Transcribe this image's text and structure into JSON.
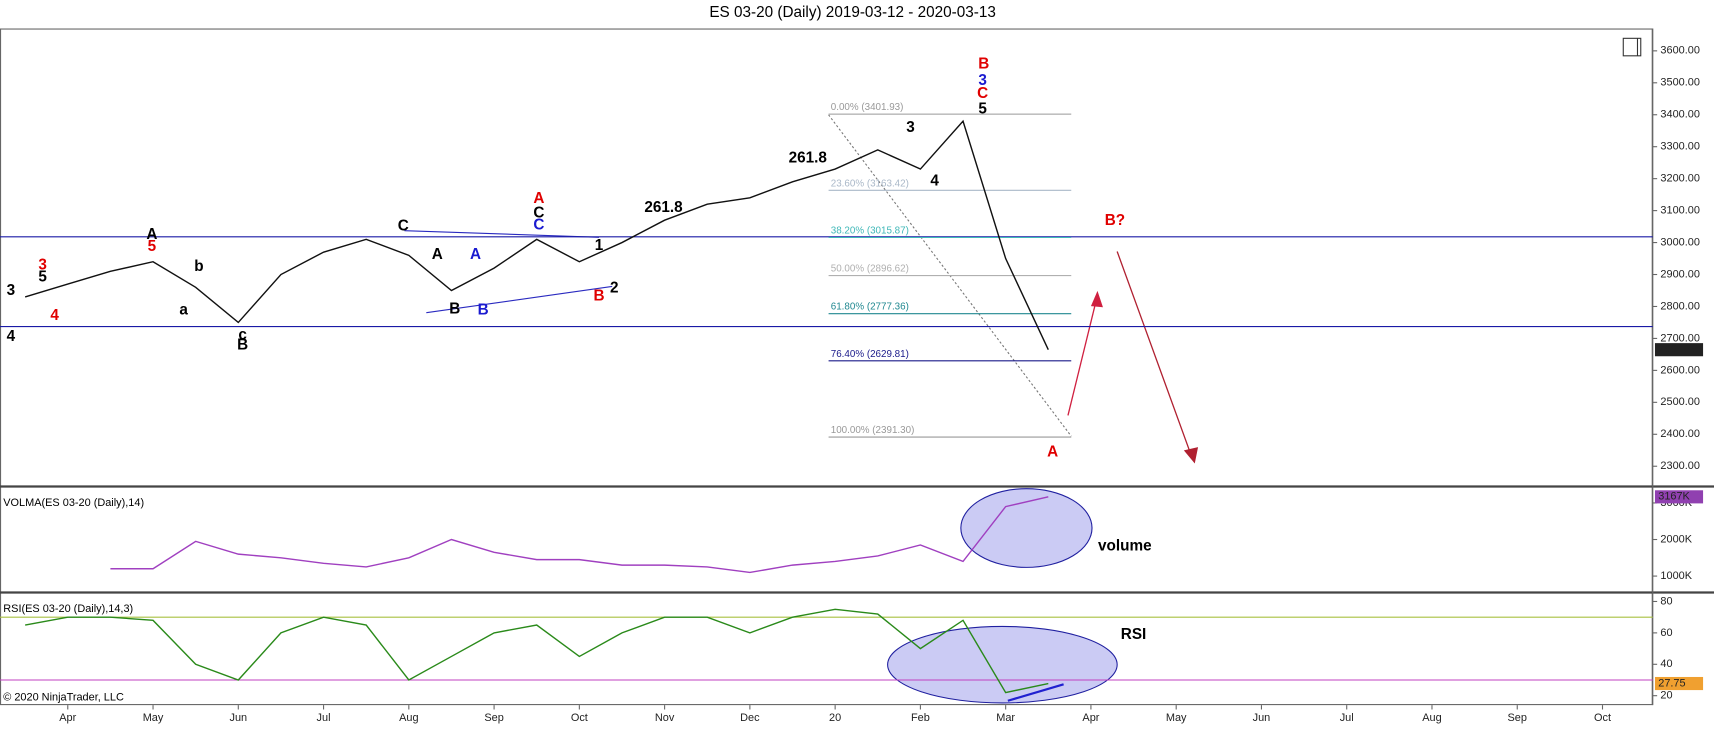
{
  "title": "ES 03-20 (Daily)  2019-03-12 - 2020-03-13",
  "footer": "© 2020 NinjaTrader, LLC",
  "chart_data": [
    {
      "type": "line",
      "categories": [
        null,
        "Apr",
        null,
        "May",
        null,
        "Jun",
        null,
        "Jul",
        null,
        "Aug",
        null,
        "Sep",
        null,
        "Oct",
        null,
        "Nov",
        null,
        "Dec",
        null,
        "20",
        null,
        "Feb",
        null,
        "Mar",
        null,
        "Apr",
        null,
        "May",
        null,
        "Jun",
        null,
        "Jul",
        null,
        "Aug",
        null,
        "Sep",
        null,
        "Oct"
      ],
      "values": [
        2830,
        2870,
        2910,
        2940,
        2860,
        2750,
        2900,
        2970,
        3010,
        2960,
        2850,
        2920,
        3010,
        2940,
        3000,
        3070,
        3120,
        3140,
        3190,
        3230,
        3290,
        3230,
        3380,
        2950,
        2664.75,
        null,
        null,
        null,
        null,
        null,
        null,
        null,
        null,
        null,
        null,
        null,
        null,
        null
      ],
      "color": "#111111",
      "ylim": [
        2240,
        3670
      ],
      "yticks": [
        {
          "value": 2300,
          "label": "2300.00"
        },
        {
          "value": 2400,
          "label": "2400.00"
        },
        {
          "value": 2500,
          "label": "2500.00"
        },
        {
          "value": 2600,
          "label": "2600.00"
        },
        {
          "value": 2700,
          "label": "2700.00"
        },
        {
          "value": 2800,
          "label": "2800.00"
        },
        {
          "value": 2900,
          "label": "2900.00"
        },
        {
          "value": 3000,
          "label": "3000.00"
        },
        {
          "value": 3100,
          "label": "3100.00"
        },
        {
          "value": 3200,
          "label": "3200.00"
        },
        {
          "value": 3300,
          "label": "3300.00"
        },
        {
          "value": 3400,
          "label": "3400.00"
        },
        {
          "value": 3500,
          "label": "3500.00"
        },
        {
          "value": 3600,
          "label": "3600.00"
        }
      ],
      "levels": [
        {
          "value": 3018,
          "color": "#1a1aa6"
        },
        {
          "value": 2737,
          "color": "#1a1aa6"
        }
      ],
      "fib_levels": [
        {
          "value": 3401.93,
          "label": "0.00% (3401.93)",
          "color": "#999999"
        },
        {
          "value": 3163.42,
          "label": "23.60% (3163.42)",
          "color": "#aab8c8"
        },
        {
          "value": 3015.87,
          "label": "38.20% (3015.87)",
          "color": "#40b8b8"
        },
        {
          "value": 2896.62,
          "label": "50.00% (2896.62)",
          "color": "#b0b0b0"
        },
        {
          "value": 2777.36,
          "label": "61.80% (2777.36)",
          "color": "#208890"
        },
        {
          "value": 2629.81,
          "label": "76.40% (2629.81)",
          "color": "#1a1a8a"
        },
        {
          "value": 2391.3,
          "label": "100.00% (2391.30)",
          "color": "#999999"
        }
      ],
      "annotations": [
        {
          "text": "3",
          "color": "#000000"
        },
        {
          "text": "5",
          "color": "#000000"
        },
        {
          "text": "3",
          "color": "#e00000"
        },
        {
          "text": "4",
          "color": "#e00000"
        },
        {
          "text": "4",
          "color": "#000000"
        },
        {
          "text": "A",
          "color": "#000000"
        },
        {
          "text": "5",
          "color": "#e00000"
        },
        {
          "text": "a",
          "color": "#000000"
        },
        {
          "text": "b",
          "color": "#000000"
        },
        {
          "text": "c",
          "color": "#000000"
        },
        {
          "text": "B",
          "color": "#000000"
        },
        {
          "text": "C",
          "color": "#000000"
        },
        {
          "text": "A",
          "color": "#000000"
        },
        {
          "text": "B",
          "color": "#000000"
        },
        {
          "text": "A",
          "color": "#1a1ad0"
        },
        {
          "text": "B",
          "color": "#1a1ad0"
        },
        {
          "text": "A",
          "color": "#e00000"
        },
        {
          "text": "C",
          "color": "#000000"
        },
        {
          "text": "C",
          "color": "#1a1ad0"
        },
        {
          "text": "1",
          "color": "#000000"
        },
        {
          "text": "2",
          "color": "#000000"
        },
        {
          "text": "B",
          "color": "#e00000"
        },
        {
          "text": "261.8",
          "color": "#000000"
        },
        {
          "text": "261.8",
          "color": "#000000"
        },
        {
          "text": "3",
          "color": "#000000"
        },
        {
          "text": "4",
          "color": "#000000"
        },
        {
          "text": "B",
          "color": "#e00000"
        },
        {
          "text": "3",
          "color": "#1a1ad0"
        },
        {
          "text": "C",
          "color": "#e00000"
        },
        {
          "text": "5",
          "color": "#000000"
        },
        {
          "text": "A",
          "color": "#e00000"
        },
        {
          "text": "B?",
          "color": "#e00000"
        }
      ]
    },
    {
      "type": "line",
      "series": [
        {
          "name": "VOLMA(ES 03-20 (Daily),14)",
          "color": "#a040c0",
          "values": [
            null,
            null,
            1200,
            1200,
            1950,
            1600,
            1500,
            1350,
            1250,
            1500,
            2000,
            1650,
            1450,
            1450,
            1300,
            1300,
            1250,
            1100,
            1300,
            1400,
            1550,
            1850,
            1400,
            2900,
            3167,
            null,
            null,
            null,
            null,
            null,
            null,
            null,
            null,
            null,
            null,
            null,
            null,
            null
          ],
          "value_labels": [
            null,
            null,
            null,
            null,
            null,
            null,
            null,
            null,
            null,
            null,
            null,
            null,
            null,
            null,
            null,
            null,
            null,
            null,
            null,
            null,
            null,
            null,
            null,
            null,
            "3167K",
            null,
            null,
            null,
            null,
            null,
            null,
            null,
            null,
            null,
            null,
            null,
            null,
            null
          ]
        }
      ],
      "ylim": [
        580,
        3420
      ],
      "yticks": [
        {
          "value": 1000,
          "label": "1000K"
        },
        {
          "value": 2000,
          "label": "2000K"
        },
        {
          "value": 3000,
          "label": "3000K"
        }
      ],
      "annotations": [
        {
          "text": "volume",
          "color": "#000000"
        }
      ]
    },
    {
      "type": "line",
      "series": [
        {
          "name": "RSI(ES 03-20 (Daily),14,3)",
          "color": "#2a8a1a",
          "values": [
            65,
            70,
            70,
            68,
            40,
            30,
            60,
            70,
            65,
            30,
            45,
            60,
            65,
            45,
            60,
            70,
            70,
            60,
            70,
            75,
            72,
            50,
            68,
            22,
            27.75,
            null,
            null,
            null,
            null,
            null,
            null,
            null,
            null,
            null,
            null,
            null,
            null,
            null
          ]
        }
      ],
      "ylim": [
        14,
        85
      ],
      "yticks": [
        20,
        40,
        60,
        80
      ],
      "levels": [
        {
          "value": 70,
          "color": "#a8c040"
        },
        {
          "value": 30,
          "color": "#c040c0"
        }
      ],
      "annotations": [
        {
          "text": "RSI",
          "color": "#000000"
        }
      ]
    }
  ]
}
